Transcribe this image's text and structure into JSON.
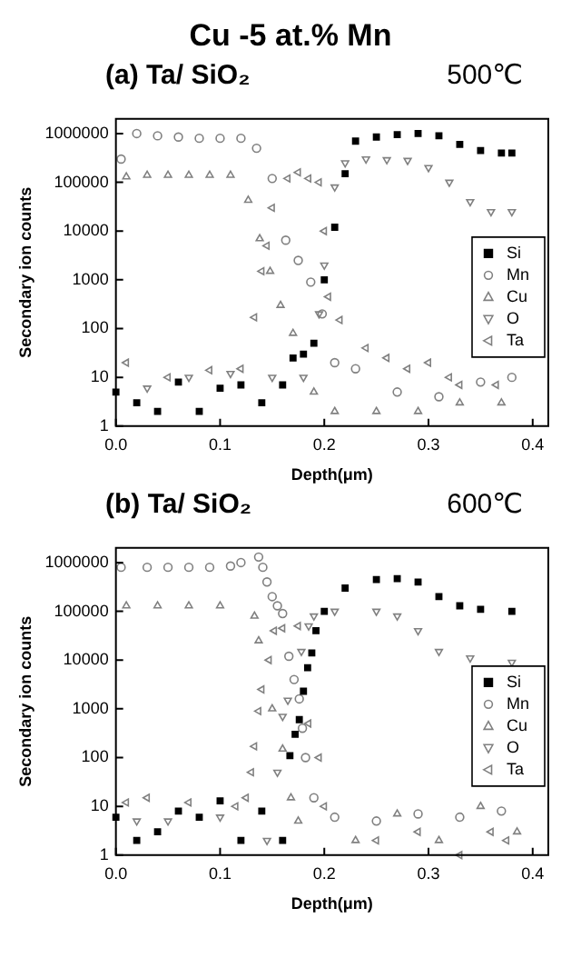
{
  "chart_data": [
    {
      "type": "scatter",
      "title": "Cu -5 at.% Mn",
      "subtitle": "(a) Ta/ SiO₂",
      "annotations": [
        "500℃"
      ],
      "xlabel": "Depth(μm)",
      "ylabel": "Secondary ion counts",
      "log": "y",
      "legend": "right",
      "grid": false,
      "xlim": [
        0,
        0.415
      ],
      "xticks": [
        {
          "value": 0,
          "label": "0.0"
        },
        0.1,
        0.2,
        0.3,
        0.4
      ],
      "ylim": [
        1,
        2000000
      ],
      "yticks": [
        1,
        10,
        100,
        1000,
        10000,
        100000,
        1000000
      ],
      "series": [
        {
          "name": "Si",
          "color": "#000000",
          "marker": "square",
          "x": [
            0,
            0.02,
            0.04,
            0.06,
            0.08,
            0.1,
            0.12,
            0.14,
            0.16,
            0.17,
            0.18,
            0.19,
            0.2,
            0.21,
            0.22,
            0.23,
            0.25,
            0.27,
            0.29,
            0.31,
            0.33,
            0.35,
            0.37,
            0.38
          ],
          "values": [
            5,
            3,
            2,
            8,
            2,
            6,
            7,
            3,
            7,
            25,
            30,
            50,
            1000,
            12000,
            150000,
            700000,
            850000,
            950000,
            1000000,
            900000,
            600000,
            450000,
            400000,
            400000
          ]
        },
        {
          "name": "Mn",
          "color": "#808080",
          "marker": "circle",
          "x": [
            0.005,
            0.02,
            0.04,
            0.06,
            0.08,
            0.1,
            0.12,
            0.135,
            0.15,
            0.163,
            0.175,
            0.187,
            0.198,
            0.21,
            0.23,
            0.27,
            0.31,
            0.35,
            0.38
          ],
          "values": [
            300000,
            1000000,
            900000,
            850000,
            800000,
            800000,
            800000,
            500000,
            120000,
            6500,
            2500,
            900,
            200,
            20,
            15,
            5,
            4,
            8,
            10
          ]
        },
        {
          "name": "Cu",
          "color": "#808080",
          "marker": "triangle",
          "x": [
            0.01,
            0.03,
            0.05,
            0.07,
            0.09,
            0.11,
            0.127,
            0.138,
            0.148,
            0.158,
            0.17,
            0.19,
            0.21,
            0.25,
            0.29,
            0.33,
            0.37
          ],
          "values": [
            130000,
            140000,
            140000,
            140000,
            140000,
            140000,
            43000,
            7000,
            1500,
            300,
            80,
            5,
            2,
            2,
            2,
            3,
            3
          ]
        },
        {
          "name": "O",
          "color": "#808080",
          "marker": "triangle",
          "x": [
            0.03,
            0.07,
            0.11,
            0.15,
            0.18,
            0.195,
            0.2,
            0.21,
            0.22,
            0.24,
            0.26,
            0.28,
            0.3,
            0.32,
            0.34,
            0.36,
            0.38
          ],
          "values": [
            6,
            10,
            12,
            10,
            10,
            200,
            2000,
            80000,
            250000,
            300000,
            290000,
            280000,
            200000,
            100000,
            40000,
            25000,
            25000
          ]
        },
        {
          "name": "Ta",
          "color": "#808080",
          "marker": "triangle",
          "x": [
            0.01,
            0.05,
            0.09,
            0.12,
            0.133,
            0.14,
            0.145,
            0.15,
            0.165,
            0.175,
            0.185,
            0.195,
            0.2,
            0.204,
            0.215,
            0.24,
            0.26,
            0.28,
            0.3,
            0.32,
            0.33,
            0.365
          ],
          "values": [
            20,
            10,
            14,
            15,
            170,
            1500,
            5000,
            30000,
            120000,
            160000,
            120000,
            100000,
            10000,
            450,
            150,
            40,
            25,
            15,
            20,
            10,
            7,
            7
          ]
        }
      ]
    },
    {
      "type": "scatter",
      "subtitle": "(b) Ta/ SiO₂",
      "annotations": [
        "600℃"
      ],
      "xlabel": "Depth(μm)",
      "ylabel": "Secondary ion counts",
      "log": "y",
      "legend": "right",
      "grid": false,
      "xlim": [
        0,
        0.415
      ],
      "xticks": [
        {
          "value": 0,
          "label": "0.0"
        },
        0.1,
        0.2,
        0.3,
        0.4
      ],
      "ylim": [
        1,
        2000000
      ],
      "yticks": [
        1,
        10,
        100,
        1000,
        10000,
        100000,
        1000000
      ],
      "series": [
        {
          "name": "Si",
          "color": "#000000",
          "marker": "square",
          "x": [
            0,
            0.02,
            0.04,
            0.06,
            0.08,
            0.1,
            0.12,
            0.14,
            0.16,
            0.167,
            0.172,
            0.176,
            0.18,
            0.184,
            0.188,
            0.192,
            0.2,
            0.22,
            0.25,
            0.27,
            0.29,
            0.31,
            0.33,
            0.35,
            0.38
          ],
          "values": [
            6,
            2,
            3,
            8,
            6,
            13,
            2,
            8,
            2,
            110,
            300,
            600,
            2300,
            7000,
            14000,
            40000,
            100000,
            300000,
            450000,
            470000,
            400000,
            200000,
            130000,
            110000,
            100000
          ]
        },
        {
          "name": "Mn",
          "color": "#808080",
          "marker": "circle",
          "x": [
            0.005,
            0.03,
            0.05,
            0.07,
            0.09,
            0.11,
            0.12,
            0.137,
            0.141,
            0.145,
            0.15,
            0.155,
            0.16,
            0.166,
            0.171,
            0.176,
            0.179,
            0.182,
            0.19,
            0.21,
            0.25,
            0.29,
            0.33,
            0.37
          ],
          "values": [
            800000,
            800000,
            800000,
            800000,
            800000,
            850000,
            1000000,
            1300000,
            800000,
            400000,
            200000,
            130000,
            90000,
            12000,
            4000,
            1600,
            400,
            100,
            15,
            6,
            5,
            7,
            6,
            8
          ]
        },
        {
          "name": "Cu",
          "color": "#808080",
          "marker": "triangle",
          "x": [
            0.01,
            0.04,
            0.07,
            0.1,
            0.133,
            0.137,
            0.15,
            0.16,
            0.168,
            0.175,
            0.23,
            0.27,
            0.31,
            0.35,
            0.385
          ],
          "values": [
            130000,
            130000,
            130000,
            130000,
            80000,
            25000,
            1000,
            150,
            15,
            5,
            2,
            7,
            2,
            10,
            3
          ]
        },
        {
          "name": "O",
          "color": "#808080",
          "marker": "triangle",
          "x": [
            0.02,
            0.05,
            0.1,
            0.145,
            0.155,
            0.16,
            0.165,
            0.178,
            0.185,
            0.19,
            0.21,
            0.25,
            0.27,
            0.29,
            0.31,
            0.34,
            0.38
          ],
          "values": [
            5,
            5,
            6,
            2,
            50,
            700,
            1500,
            15000,
            50000,
            80000,
            100000,
            100000,
            80000,
            40000,
            15000,
            11000,
            9000
          ]
        },
        {
          "name": "Ta",
          "color": "#808080",
          "marker": "triangle",
          "x": [
            0.01,
            0.03,
            0.07,
            0.115,
            0.125,
            0.13,
            0.133,
            0.137,
            0.14,
            0.147,
            0.152,
            0.16,
            0.175,
            0.185,
            0.195,
            0.2,
            0.25,
            0.29,
            0.33,
            0.36,
            0.375
          ],
          "values": [
            12,
            15,
            12,
            10,
            15,
            50,
            170,
            900,
            2500,
            10000,
            40000,
            45000,
            50000,
            500,
            100,
            10,
            2,
            3,
            1,
            3,
            2
          ]
        }
      ]
    }
  ]
}
